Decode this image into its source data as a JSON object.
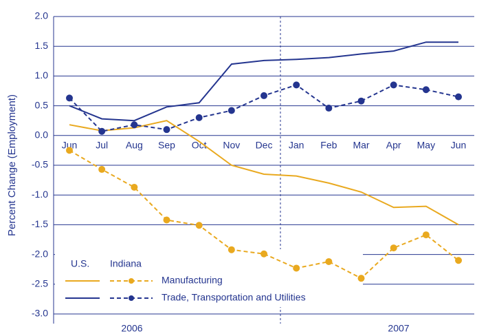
{
  "chart_data": {
    "type": "line",
    "y_label": "Percent Change (Employment)",
    "categories": [
      "Jun",
      "Jul",
      "Aug",
      "Sep",
      "Oct",
      "Nov",
      "Dec",
      "Jan",
      "Feb",
      "Mar",
      "Apr",
      "May",
      "Jun"
    ],
    "years": [
      "2006",
      "2007"
    ],
    "ylim": [
      -3.0,
      2.0
    ],
    "yticks": [
      {
        "value": 2,
        "label": "2.0"
      },
      {
        "value": 1.5,
        "label": "1.5"
      },
      {
        "value": 1,
        "label": "1.0"
      },
      {
        "value": 0.5,
        "label": "0.5"
      },
      {
        "value": 0,
        "label": "0.0"
      },
      {
        "value": -0.5,
        "label": "-0.5"
      },
      {
        "value": -1,
        "label": "-1.0"
      },
      {
        "value": -1.5,
        "label": "-1.5"
      },
      {
        "value": -2,
        "label": "-2.0"
      },
      {
        "value": -2.5,
        "label": "-2.5"
      },
      {
        "value": -3,
        "label": "-3.0"
      }
    ],
    "grid": true,
    "legend_columns": [
      "U.S.",
      "Indiana"
    ],
    "series": [
      {
        "name": "Manufacturing",
        "color": "#e9a91f",
        "us_values": [
          0.18,
          0.08,
          0.13,
          0.25,
          -0.1,
          -0.5,
          -0.65,
          -0.68,
          -0.8,
          -0.95,
          -1.21,
          -1.19,
          -1.5
        ],
        "indiana_values": [
          -0.25,
          -0.57,
          -0.87,
          -1.42,
          -1.51,
          -1.92,
          -1.99,
          -2.23,
          -2.12,
          -2.4,
          -1.89,
          -1.67,
          -2.1
        ]
      },
      {
        "name": "Trade, Transportation and Utilities",
        "color": "#24358f",
        "us_values": [
          0.5,
          0.28,
          0.25,
          0.48,
          0.55,
          1.2,
          1.26,
          1.28,
          1.31,
          1.37,
          1.42,
          1.57,
          1.57
        ],
        "indiana_values": [
          0.63,
          0.07,
          0.18,
          0.1,
          0.3,
          0.42,
          0.67,
          0.85,
          0.46,
          0.58,
          0.85,
          0.77,
          0.65
        ]
      }
    ]
  }
}
